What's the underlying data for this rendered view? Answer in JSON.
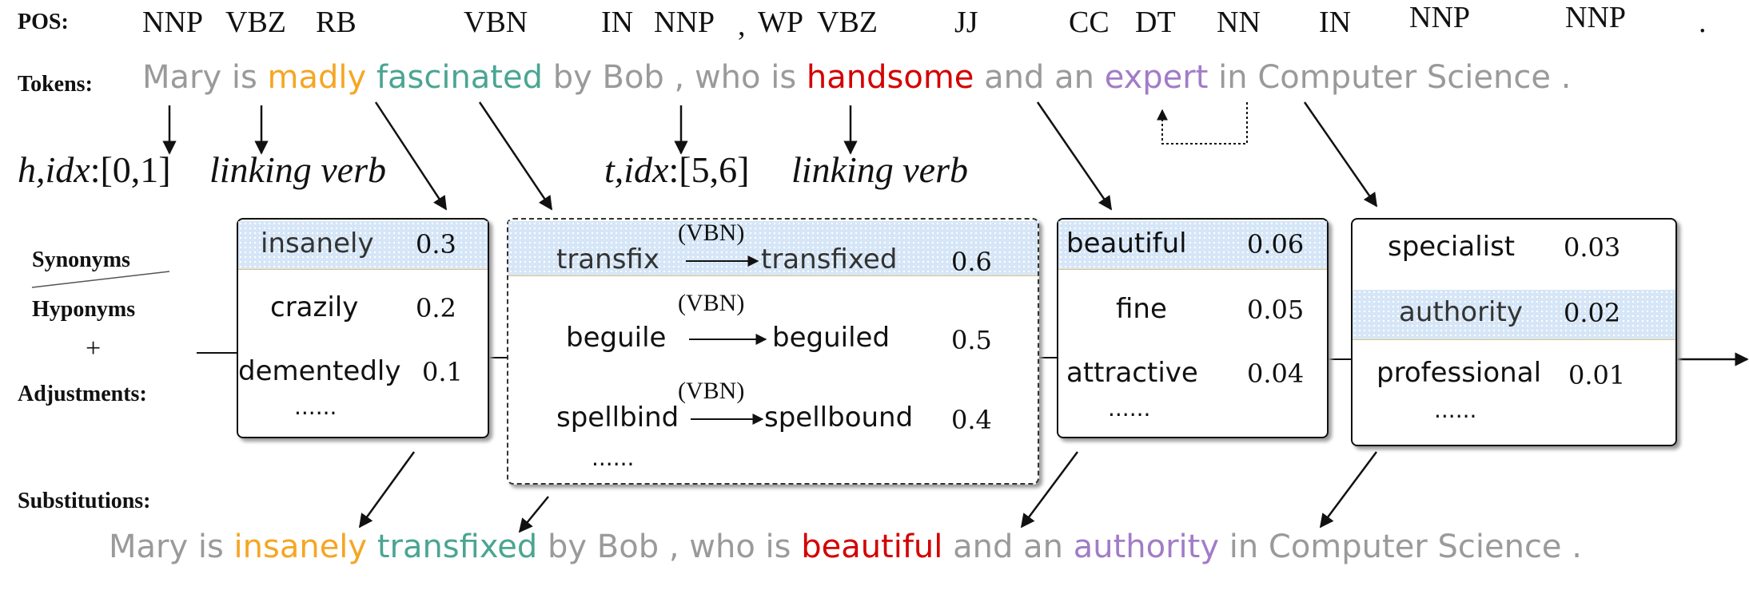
{
  "labels": {
    "pos": "POS:",
    "tokens": "Tokens:",
    "synonyms": "Synonyms",
    "hyponyms": "Hyponyms",
    "plus": "+",
    "adjustments": "Adjustments:",
    "substitutions": "Substitutions:"
  },
  "pos_tags": [
    "NNP",
    "VBZ",
    "RB",
    "VBN",
    "IN",
    "NNP",
    ",",
    "WP",
    "VBZ",
    "JJ",
    "CC",
    "DT",
    "NN",
    "IN",
    "NNP",
    "NNP",
    "."
  ],
  "tokens": [
    "Mary",
    "is",
    "madly",
    "fascinated",
    "by",
    "Bob",
    ",",
    "who",
    "is",
    "handsome",
    "and",
    "an",
    "expert",
    "in",
    "Computer",
    "Science",
    "."
  ],
  "annotations": {
    "head_label": "h,idx",
    "head_idx": ":[0,1]",
    "linking_verb_1": "linking verb",
    "tail_label": "t,idx",
    "tail_idx": ":[5,6]",
    "linking_verb_2": "linking verb"
  },
  "boxes": {
    "madly": {
      "rows": [
        {
          "word": "insanely",
          "score": "0.3"
        },
        {
          "word": "crazily",
          "score": "0.2"
        },
        {
          "word": "dementedly",
          "score": "0.1"
        }
      ],
      "more": "......"
    },
    "fascinated": {
      "rows": [
        {
          "base": "transfix",
          "tag": "(VBN)",
          "word": "transfixed",
          "score": "0.6"
        },
        {
          "base": "beguile",
          "tag": "(VBN)",
          "word": "beguiled",
          "score": "0.5"
        },
        {
          "base": "spellbind",
          "tag": "(VBN)",
          "word": "spellbound",
          "score": "0.4"
        }
      ],
      "more": "......"
    },
    "handsome": {
      "rows": [
        {
          "word": "beautiful",
          "score": "0.06"
        },
        {
          "word": "fine",
          "score": "0.05"
        },
        {
          "word": "attractive",
          "score": "0.04"
        }
      ],
      "more": "......"
    },
    "expert": {
      "rows": [
        {
          "word": "specialist",
          "score": "0.03"
        },
        {
          "word": "authority",
          "score": "0.02"
        },
        {
          "word": "professional",
          "score": "0.01"
        }
      ],
      "more": "......"
    }
  },
  "substitution_tokens": [
    "Mary",
    "is",
    "insanely",
    "transfixed",
    "by",
    "Bob",
    ",",
    "who",
    "is",
    "beautiful",
    "and",
    "an",
    "authority",
    "in",
    "Computer",
    "Science",
    "."
  ],
  "colors": {
    "orange": "#f5a623",
    "teal": "#4aa592",
    "red": "#d40000",
    "purple": "#a27cc7",
    "gray_text": "#9a9a9a",
    "highlight": "#d6e6f7"
  }
}
